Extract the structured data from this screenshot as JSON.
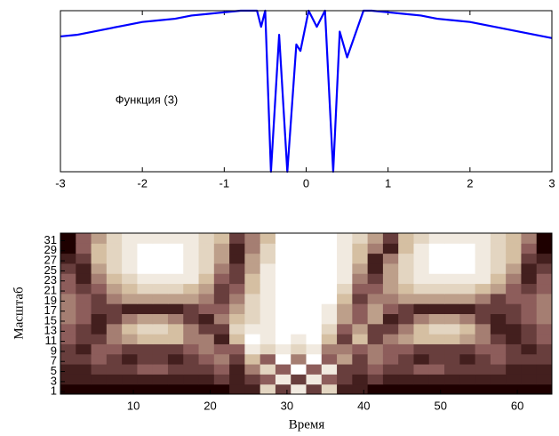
{
  "chart_data": [
    {
      "type": "line",
      "annotation": "Функция (3)",
      "x": [
        -3,
        -2.8,
        -2.6,
        -2.4,
        -2.2,
        -2.0,
        -1.8,
        -1.6,
        -1.4,
        -1.2,
        -1.0,
        -0.8,
        -0.6,
        -0.55,
        -0.5,
        -0.43,
        -0.33,
        -0.23,
        -0.12,
        -0.07,
        0.03,
        0.13,
        0.23,
        0.33,
        0.41,
        0.5,
        0.7,
        0.8,
        1.0,
        1.2,
        1.4,
        1.6,
        1.8,
        2.0,
        2.2,
        2.4,
        2.6,
        2.8,
        3.0
      ],
      "series": [
        {
          "color": "#0000ff",
          "values": [
            0.84,
            0.85,
            0.87,
            0.89,
            0.91,
            0.93,
            0.94,
            0.95,
            0.97,
            0.98,
            0.99,
            1.0,
            1.0,
            0.9,
            1.0,
            0,
            0.85,
            0,
            0.79,
            0.75,
            1.0,
            0.9,
            1.0,
            0,
            0.87,
            0.71,
            1.0,
            1.0,
            0.99,
            0.98,
            0.97,
            0.95,
            0.94,
            0.93,
            0.91,
            0.89,
            0.87,
            0.85,
            0.83
          ]
        }
      ],
      "xlim": [
        -3,
        3
      ],
      "xticks": [
        -3,
        -2,
        -1,
        0,
        1,
        2,
        3
      ],
      "ylim": [
        0,
        1
      ]
    },
    {
      "type": "heatmap",
      "xlabel": "Время",
      "ylabel": "Масштаб",
      "colormap": "pink",
      "clim": [
        0,
        9
      ],
      "xlim": [
        0.5,
        64.5
      ],
      "ylim": [
        0.5,
        32.5
      ],
      "xticks": [
        10,
        20,
        30,
        40,
        50,
        60
      ],
      "yticks": [
        1,
        3,
        5,
        7,
        9,
        11,
        13,
        15,
        17,
        19,
        21,
        23,
        25,
        27,
        29,
        31
      ],
      "values": [
        [
          0,
          0,
          0,
          0,
          0,
          0,
          0,
          0,
          0,
          0,
          0,
          1,
          1,
          7,
          2,
          8,
          2,
          7,
          1,
          1,
          0,
          0,
          0,
          0,
          0,
          0,
          0,
          0,
          0,
          0,
          0,
          0
        ],
        [
          1,
          1,
          1,
          1,
          1,
          1,
          1,
          1,
          1,
          1,
          2,
          1,
          2,
          3,
          8,
          2,
          8,
          3,
          2,
          1,
          2,
          1,
          1,
          1,
          1,
          1,
          1,
          1,
          1,
          1,
          1,
          1
        ],
        [
          1,
          1,
          2,
          2,
          2,
          3,
          3,
          2,
          2,
          2,
          3,
          1,
          4,
          7,
          3,
          9,
          3,
          8,
          2,
          2,
          3,
          2,
          2,
          3,
          3,
          2,
          2,
          2,
          2,
          1,
          1,
          1
        ],
        [
          2,
          2,
          3,
          2,
          1,
          2,
          2,
          1,
          2,
          3,
          4,
          2,
          6,
          3,
          9,
          4,
          9,
          3,
          5,
          2,
          4,
          3,
          2,
          1,
          2,
          2,
          1,
          2,
          3,
          2,
          2,
          2
        ],
        [
          2,
          1,
          3,
          3,
          2,
          2,
          2,
          2,
          3,
          4,
          3,
          3,
          8,
          7,
          8,
          7,
          8,
          4,
          4,
          3,
          4,
          3,
          3,
          2,
          2,
          2,
          2,
          3,
          3,
          2,
          1,
          2
        ],
        [
          3,
          2,
          2,
          4,
          5,
          6,
          6,
          6,
          4,
          4,
          1,
          6,
          9,
          8,
          9,
          8,
          9,
          6,
          2,
          6,
          2,
          4,
          5,
          6,
          6,
          6,
          5,
          4,
          2,
          1,
          2,
          3
        ],
        [
          3,
          2,
          1,
          4,
          6,
          7,
          7,
          6,
          4,
          2,
          2,
          7,
          8,
          8,
          9,
          9,
          9,
          7,
          3,
          5,
          2,
          2,
          4,
          6,
          7,
          7,
          6,
          4,
          1,
          1,
          2,
          3
        ],
        [
          4,
          3,
          1,
          2,
          4,
          5,
          5,
          4,
          2,
          1,
          4,
          6,
          7,
          8,
          9,
          9,
          9,
          8,
          5,
          3,
          5,
          1,
          2,
          4,
          5,
          5,
          4,
          2,
          1,
          2,
          3,
          4
        ],
        [
          4,
          3,
          2,
          2,
          1,
          1,
          1,
          1,
          2,
          3,
          3,
          5,
          7,
          8,
          9,
          9,
          9,
          8,
          5,
          3,
          5,
          3,
          2,
          1,
          1,
          1,
          1,
          2,
          2,
          2,
          3,
          4
        ],
        [
          4,
          3,
          2,
          4,
          5,
          5,
          5,
          5,
          5,
          4,
          2,
          4,
          7,
          8,
          9,
          9,
          9,
          9,
          6,
          2,
          4,
          4,
          5,
          5,
          5,
          5,
          5,
          4,
          2,
          3,
          3,
          4
        ],
        [
          3,
          2,
          3,
          5,
          6,
          7,
          7,
          7,
          6,
          5,
          2,
          3,
          6,
          8,
          9,
          9,
          9,
          9,
          7,
          3,
          3,
          5,
          6,
          7,
          7,
          7,
          7,
          6,
          5,
          3,
          2,
          3
        ],
        [
          3,
          1,
          4,
          6,
          7,
          8,
          8,
          8,
          8,
          6,
          3,
          2,
          6,
          8,
          9,
          9,
          9,
          9,
          8,
          4,
          2,
          5,
          7,
          8,
          8,
          8,
          8,
          8,
          6,
          4,
          1,
          3
        ],
        [
          2,
          1,
          5,
          7,
          8,
          9,
          9,
          9,
          8,
          7,
          4,
          2,
          5,
          8,
          9,
          9,
          9,
          9,
          8,
          5,
          1,
          5,
          7,
          8,
          9,
          9,
          9,
          8,
          7,
          5,
          1,
          2
        ],
        [
          1,
          2,
          6,
          7,
          8,
          9,
          9,
          9,
          8,
          7,
          5,
          1,
          5,
          7,
          9,
          9,
          9,
          9,
          8,
          6,
          1,
          4,
          7,
          8,
          9,
          9,
          9,
          8,
          7,
          6,
          2,
          1
        ],
        [
          0,
          3,
          6,
          7,
          8,
          9,
          9,
          9,
          8,
          7,
          5,
          1,
          4,
          7,
          9,
          9,
          9,
          9,
          8,
          6,
          4,
          1,
          6,
          8,
          9,
          9,
          9,
          8,
          7,
          6,
          3,
          0
        ],
        [
          0,
          3,
          5,
          7,
          8,
          8,
          8,
          8,
          8,
          7,
          6,
          2,
          4,
          6,
          9,
          9,
          9,
          9,
          8,
          7,
          5,
          2,
          6,
          7,
          8,
          8,
          8,
          8,
          7,
          6,
          4,
          0
        ]
      ]
    }
  ]
}
